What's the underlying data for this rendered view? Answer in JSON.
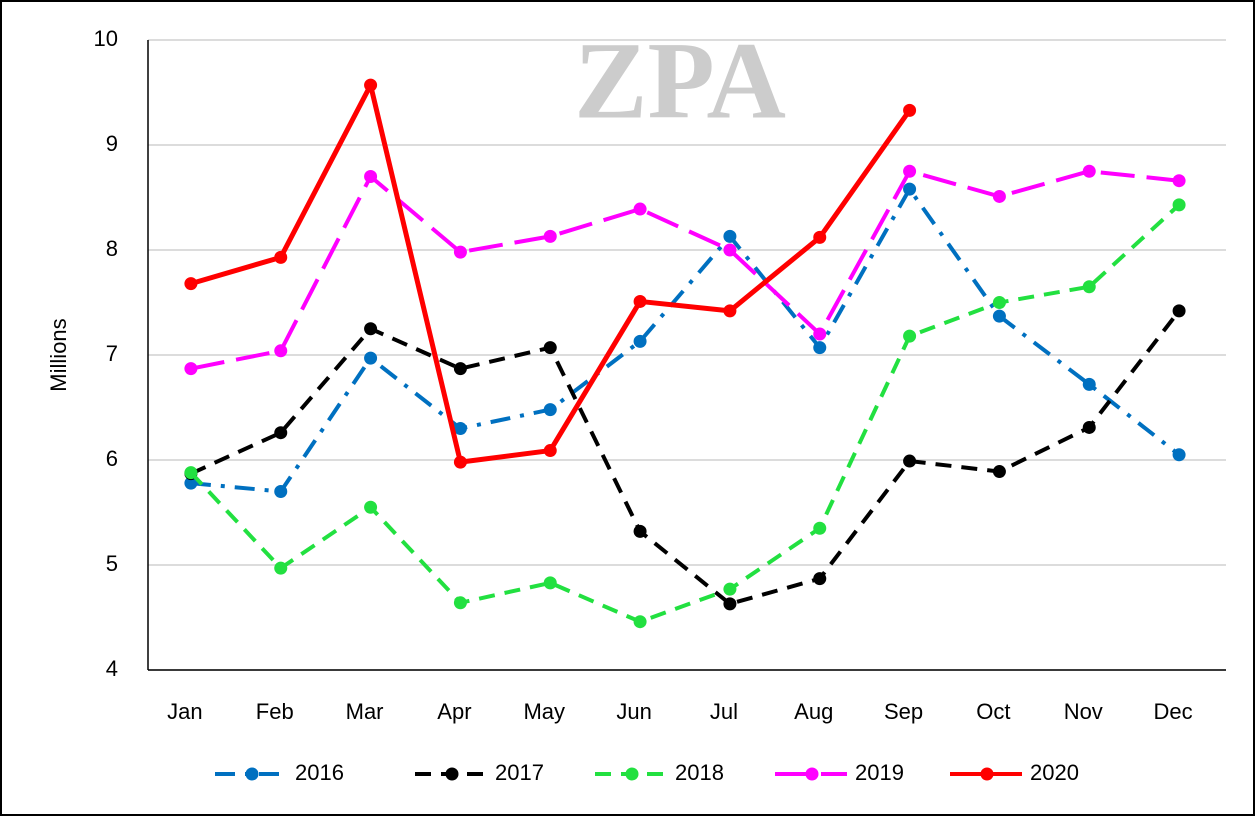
{
  "chart_data": {
    "type": "line",
    "watermark": "ZPA",
    "y_label": "Millions",
    "categories": [
      "Jan",
      "Feb",
      "Mar",
      "Apr",
      "May",
      "Jun",
      "Jul",
      "Aug",
      "Sep",
      "Oct",
      "Nov",
      "Dec"
    ],
    "series": [
      {
        "name": "2016",
        "color": "#0070c0",
        "dash": "dashdot",
        "values": [
          5.78,
          5.7,
          6.97,
          6.3,
          6.48,
          7.13,
          8.13,
          7.07,
          8.58,
          7.37,
          6.72,
          6.05
        ]
      },
      {
        "name": "2017",
        "color": "#000000",
        "dash": "dash",
        "values": [
          5.87,
          6.26,
          7.25,
          6.87,
          7.07,
          5.32,
          4.63,
          4.87,
          5.99,
          5.89,
          6.31,
          7.42
        ]
      },
      {
        "name": "2018",
        "color": "#22e040",
        "dash": "dash",
        "values": [
          5.88,
          4.97,
          5.55,
          4.64,
          4.83,
          4.46,
          4.77,
          5.35,
          7.18,
          7.5,
          7.65,
          8.43
        ]
      },
      {
        "name": "2019",
        "color": "#ff00ff",
        "dash": "longdash",
        "values": [
          6.87,
          7.04,
          8.7,
          7.98,
          8.13,
          8.39,
          8.0,
          7.2,
          8.75,
          8.51,
          8.75,
          8.66
        ]
      },
      {
        "name": "2020",
        "color": "#ff0000",
        "dash": "solid",
        "values": [
          7.68,
          7.93,
          9.57,
          5.98,
          6.09,
          7.51,
          7.42,
          8.12,
          9.33,
          null,
          null,
          null
        ]
      }
    ],
    "ylim": [
      4,
      10
    ],
    "yticks": [
      4,
      5,
      6,
      7,
      8,
      9,
      10
    ],
    "grid": true,
    "legend": "bottom"
  }
}
